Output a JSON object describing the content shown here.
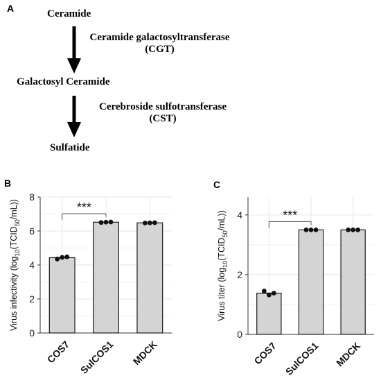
{
  "panels": {
    "a": "A",
    "b": "B",
    "c": "C"
  },
  "pathway": {
    "substrate": "Ceramide",
    "enzyme1_name": "Ceramide  galactosyltransferase",
    "enzyme1_abbr": "(CGT)",
    "intermediate": "Galactosyl  Ceramide",
    "enzyme2_name": "Cerebroside  sulfotransferase",
    "enzyme2_abbr": "(CST)",
    "product": "Sulfatide"
  },
  "chart_data": [
    {
      "type": "bar",
      "panel": "B",
      "categories": [
        "COS7",
        "SulCOS1",
        "MDCK"
      ],
      "values": [
        4.43,
        6.52,
        6.48
      ],
      "points": [
        [
          4.35,
          4.45,
          4.48
        ],
        [
          6.5,
          6.52,
          6.53
        ],
        [
          6.47,
          6.48,
          6.49
        ]
      ],
      "ylabel_pre": "Virus infectivity (log",
      "ylabel_sub1": "10",
      "ylabel_mid": "(TCID",
      "ylabel_sub2": "50",
      "ylabel_post": "/mL))",
      "ylim": [
        0,
        8
      ],
      "yticks": [
        "0",
        "2",
        "4",
        "6",
        "8"
      ],
      "significance": "***",
      "significance_pair": [
        "COS7",
        "SulCOS1"
      ],
      "grid": true
    },
    {
      "type": "bar",
      "panel": "C",
      "categories": [
        "COS7",
        "SulCOS1",
        "MDCK"
      ],
      "values": [
        1.38,
        3.5,
        3.5
      ],
      "points": [
        [
          1.45,
          1.32,
          1.38
        ],
        [
          3.5,
          3.5,
          3.5
        ],
        [
          3.5,
          3.5,
          3.5
        ]
      ],
      "ylabel_pre": "Virus titer (log",
      "ylabel_sub1": "10",
      "ylabel_mid": "(TCID",
      "ylabel_sub2": "50",
      "ylabel_post": "/mL))",
      "ylim": [
        0,
        4.6
      ],
      "yticks": [
        "0",
        "2",
        "4"
      ],
      "significance": "***",
      "significance_pair": [
        "COS7",
        "SulCOS1"
      ],
      "grid": true
    }
  ],
  "colors": {
    "bar_fill": "#d4d4d4",
    "bar_stroke": "#1a1a1a",
    "grid": "#e6e6e6",
    "point": "#111111"
  }
}
